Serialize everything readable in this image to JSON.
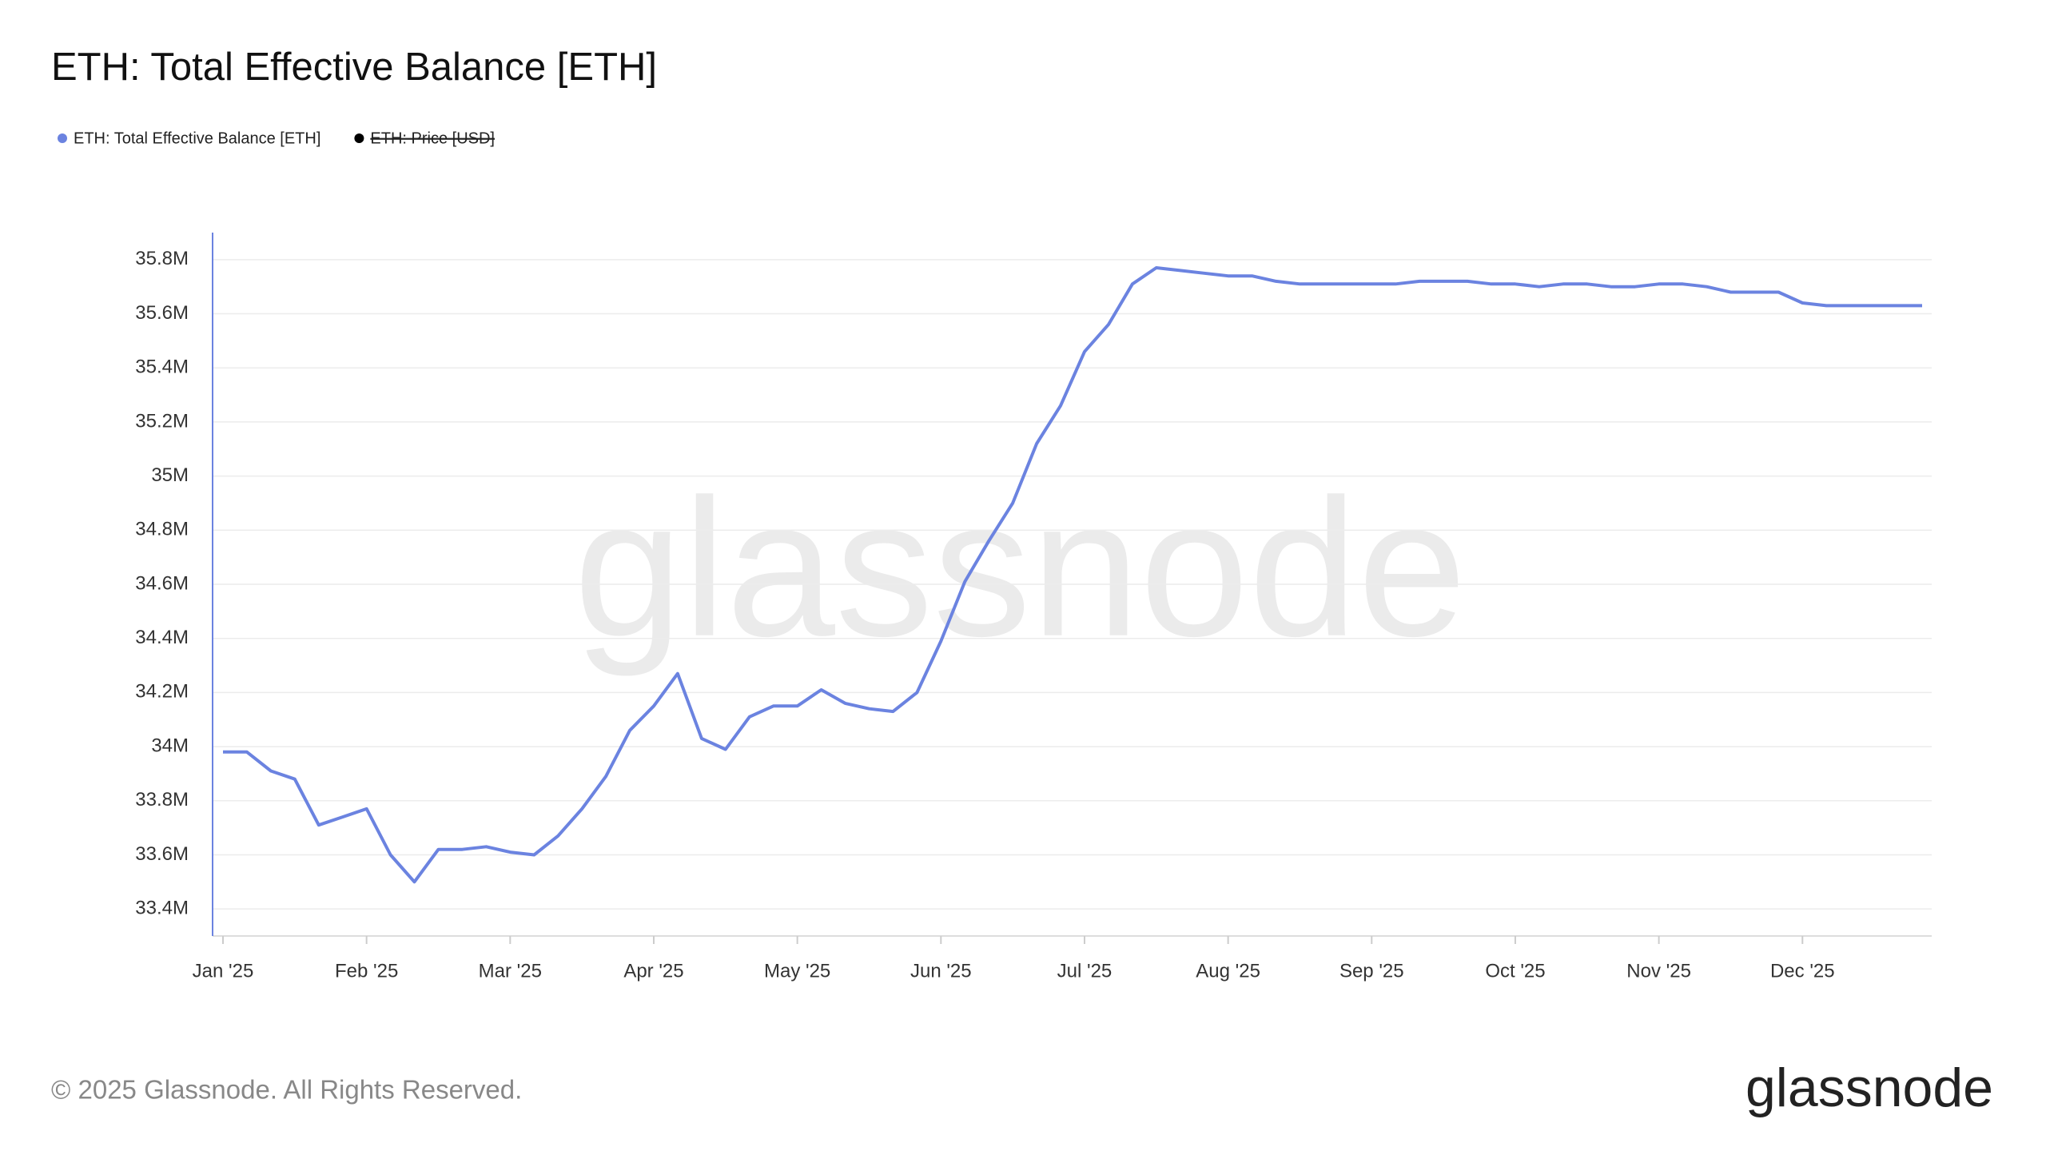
{
  "chart_data": {
    "type": "line",
    "title": "ETH: Total Effective Balance [ETH]",
    "categories": [
      "Jan '25",
      null,
      null,
      null,
      null,
      null,
      "Feb '25",
      null,
      null,
      null,
      null,
      null,
      "Mar '25",
      null,
      null,
      null,
      null,
      null,
      "Apr '25",
      null,
      null,
      null,
      null,
      null,
      "May '25",
      null,
      null,
      null,
      null,
      null,
      "Jun '25",
      null,
      null,
      null,
      null,
      null,
      "Jul '25",
      null,
      null,
      null,
      null,
      null,
      "Aug '25",
      null,
      null,
      null,
      null,
      null,
      "Sep '25",
      null,
      null,
      null,
      null,
      null,
      "Oct '25",
      null,
      null,
      null,
      null,
      null,
      "Nov '25",
      null,
      null,
      null,
      null,
      null,
      "Dec '25",
      null,
      null,
      null,
      null,
      null
    ],
    "series": [
      {
        "name": "ETH: Total Effective Balance [ETH]",
        "color": "#6b83e0",
        "values": [
          33.98,
          33.98,
          33.91,
          33.88,
          33.71,
          33.74,
          33.77,
          33.6,
          33.5,
          33.62,
          33.62,
          33.63,
          33.61,
          33.6,
          33.67,
          33.77,
          33.89,
          34.06,
          34.15,
          34.27,
          34.03,
          33.99,
          34.11,
          34.15,
          34.15,
          34.21,
          34.16,
          34.14,
          34.13,
          34.2,
          34.39,
          34.61,
          34.76,
          34.9,
          35.12,
          35.26,
          35.46,
          35.56,
          35.71,
          35.77,
          35.76,
          35.75,
          35.74,
          35.74,
          35.72,
          35.71,
          35.71,
          35.71,
          35.71,
          35.71,
          35.72,
          35.72,
          35.72,
          35.71,
          35.71,
          35.7,
          35.71,
          35.71,
          35.7,
          35.7,
          35.71,
          35.71,
          35.7,
          35.68,
          35.68,
          35.68,
          35.64,
          35.63,
          35.63,
          35.63,
          35.63,
          35.63
        ]
      }
    ],
    "hidden_series": [
      {
        "name": "ETH: Price [USD]",
        "color": "#000000"
      }
    ],
    "ylim": [
      33.3,
      35.9
    ],
    "yticks": [
      {
        "value": 33.4,
        "label": "33.4M"
      },
      {
        "value": 33.6,
        "label": "33.6M"
      },
      {
        "value": 33.8,
        "label": "33.8M"
      },
      {
        "value": 34,
        "label": "34M"
      },
      {
        "value": 34.2,
        "label": "34.2M"
      },
      {
        "value": 34.4,
        "label": "34.4M"
      },
      {
        "value": 34.6,
        "label": "34.6M"
      },
      {
        "value": 34.8,
        "label": "34.8M"
      },
      {
        "value": 35,
        "label": "35M"
      },
      {
        "value": 35.2,
        "label": "35.2M"
      },
      {
        "value": 35.4,
        "label": "35.4M"
      },
      {
        "value": 35.6,
        "label": "35.6M"
      },
      {
        "value": 35.8,
        "label": "35.8M"
      }
    ],
    "grid": true,
    "watermark": "glassnode",
    "footer": "© 2025 Glassnode. All Rights Reserved.",
    "logo": "glassnode"
  }
}
